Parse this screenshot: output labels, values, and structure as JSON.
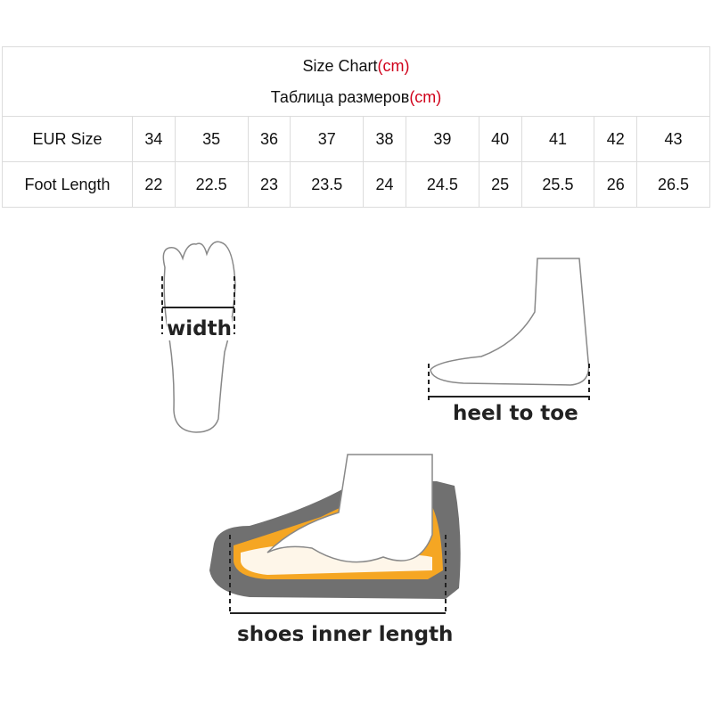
{
  "title": {
    "line1": "Size Chart",
    "line2": "Таблица размеров",
    "unit": "(cm)"
  },
  "rows": {
    "eur": {
      "label": "EUR Size",
      "values": [
        "34",
        "35",
        "36",
        "37",
        "38",
        "39",
        "40",
        "41",
        "42",
        "43"
      ]
    },
    "foot": {
      "label": "Foot Length",
      "values": [
        "22",
        "22.5",
        "23",
        "23.5",
        "24",
        "24.5",
        "25",
        "25.5",
        "26",
        "26.5"
      ]
    }
  },
  "captions": {
    "width": "width",
    "heel": "heel to toe",
    "inner": "shoes inner length"
  },
  "colors": {
    "accent": "#d0021b",
    "insole": "#f5a623",
    "sole": "#707070"
  }
}
